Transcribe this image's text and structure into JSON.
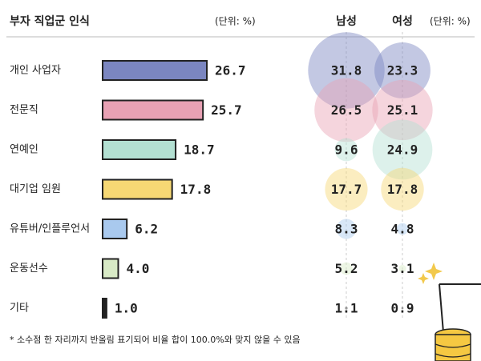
{
  "chart_data": {
    "type": "bar",
    "title": "부자 직업군 인식",
    "unit_left": "(단위: %)",
    "unit_right": "(단위: %)",
    "categories": [
      "개인 사업자",
      "전문직",
      "연예인",
      "대기업 임원",
      "유튜버/인플루언서",
      "운동선수",
      "기타"
    ],
    "values": [
      26.7,
      25.7,
      18.7,
      17.8,
      6.2,
      4.0,
      1.0
    ],
    "value_labels": [
      "26.7",
      "25.7",
      "18.7",
      "17.8",
      "6.2",
      "4.0",
      "1.0"
    ],
    "colors": [
      "#7b86c0",
      "#e8a1b4",
      "#b3e0d2",
      "#f6d874",
      "#a9c9ee",
      "#d8eac6",
      "#222222"
    ],
    "bubble_series": [
      {
        "name": "남성",
        "values": [
          31.8,
          26.5,
          9.6,
          17.7,
          8.3,
          5.2,
          1.1
        ]
      },
      {
        "name": "여성",
        "values": [
          23.3,
          25.1,
          24.9,
          17.8,
          4.8,
          3.1,
          0.9
        ]
      }
    ],
    "note": "* 소수점 한 자리까지 반올림 표기되어 비율 합이 100.0%와 맞지 않을 수 있음"
  }
}
